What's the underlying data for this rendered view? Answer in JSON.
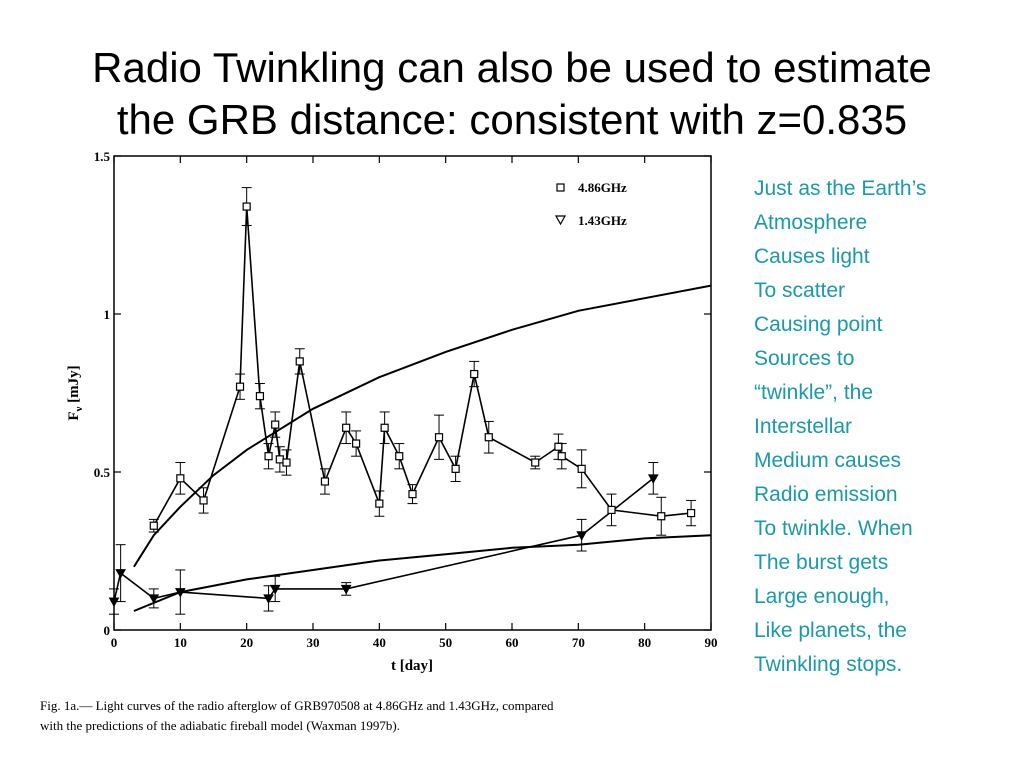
{
  "slide": {
    "title_lines": [
      "Radio Twinkling can also be used to estimate",
      "the GRB distance:  consistent with z=0.835"
    ],
    "side_text_lines": [
      "Just as the Earth’s",
      "Atmosphere",
      "Causes light",
      "To scatter",
      "Causing point",
      "Sources to",
      "“twinkle”, the",
      "Interstellar",
      "Medium causes",
      "Radio emission",
      "To twinkle.  When",
      "The burst gets",
      "Large enough,",
      "Like planets, the",
      "Twinkling stops."
    ],
    "side_text_color": "#1a9aa8",
    "caption_lines": [
      "Fig.  1a.— Light curves of the radio afterglow of GRB970508 at 4.86GHz and 1.43GHz, compared",
      "with the predictions of the adiabatic fireball model (Waxman 1997b)."
    ]
  },
  "chart_data": {
    "type": "line",
    "xlabel": "t [day]",
    "ylabel": "F",
    "ylabel_sub": "ν",
    "ylabel_tail": " [mJy]",
    "xlim": [
      0,
      90
    ],
    "ylim": [
      0,
      1.5
    ],
    "x_ticks": [
      0,
      10,
      20,
      30,
      40,
      50,
      60,
      70,
      80,
      90
    ],
    "y_ticks": [
      0,
      0.5,
      1,
      1.5
    ],
    "x_tick_labels": [
      "0",
      "10",
      "20",
      "30",
      "40",
      "50",
      "60",
      "70",
      "80",
      "90"
    ],
    "y_tick_labels": [
      "0",
      "0.5",
      "1",
      "1.5"
    ],
    "grid": false,
    "legend_position": "top-right",
    "series": [
      {
        "name": "4.86GHz",
        "marker": "square",
        "points": [
          {
            "x": 6,
            "y": 0.33,
            "err": 0.02
          },
          {
            "x": 10,
            "y": 0.48,
            "err": 0.05
          },
          {
            "x": 13.5,
            "y": 0.41,
            "err": 0.04
          },
          {
            "x": 19,
            "y": 0.77,
            "err": 0.04
          },
          {
            "x": 20,
            "y": 1.34,
            "err": 0.06
          },
          {
            "x": 22,
            "y": 0.74,
            "err": 0.04
          },
          {
            "x": 23.3,
            "y": 0.55,
            "err": 0.04
          },
          {
            "x": 24.3,
            "y": 0.65,
            "err": 0.04
          },
          {
            "x": 25,
            "y": 0.54,
            "err": 0.04
          },
          {
            "x": 26,
            "y": 0.53,
            "err": 0.04
          },
          {
            "x": 28,
            "y": 0.85,
            "err": 0.04
          },
          {
            "x": 31.8,
            "y": 0.47,
            "err": 0.04
          },
          {
            "x": 35,
            "y": 0.64,
            "err": 0.05
          },
          {
            "x": 36.5,
            "y": 0.59,
            "err": 0.04
          },
          {
            "x": 40,
            "y": 0.4,
            "err": 0.04
          },
          {
            "x": 40.8,
            "y": 0.64,
            "err": 0.05
          },
          {
            "x": 43,
            "y": 0.55,
            "err": 0.04
          },
          {
            "x": 45,
            "y": 0.43,
            "err": 0.03
          },
          {
            "x": 49,
            "y": 0.61,
            "err": 0.07
          },
          {
            "x": 51.5,
            "y": 0.51,
            "err": 0.04
          },
          {
            "x": 54.3,
            "y": 0.81,
            "err": 0.04
          },
          {
            "x": 56.5,
            "y": 0.61,
            "err": 0.05
          },
          {
            "x": 63.5,
            "y": 0.53,
            "err": 0.02
          },
          {
            "x": 67,
            "y": 0.58,
            "err": 0.04
          },
          {
            "x": 67.5,
            "y": 0.55,
            "err": 0.04
          },
          {
            "x": 70.5,
            "y": 0.51,
            "err": 0.06
          },
          {
            "x": 75,
            "y": 0.38,
            "err": 0.05
          },
          {
            "x": 82.5,
            "y": 0.36,
            "err": 0.06
          },
          {
            "x": 87,
            "y": 0.37,
            "err": 0.04
          }
        ]
      },
      {
        "name": "1.43GHz",
        "marker": "triangle-down",
        "points": [
          {
            "x": 0,
            "y": 0.09,
            "err": 0.04
          },
          {
            "x": 1,
            "y": 0.18,
            "err": 0.09
          },
          {
            "x": 6,
            "y": 0.1,
            "err": 0.03
          },
          {
            "x": 10,
            "y": 0.12,
            "err": 0.07
          },
          {
            "x": 23.3,
            "y": 0.1,
            "err": 0.04
          },
          {
            "x": 24.3,
            "y": 0.13,
            "err": 0.04
          },
          {
            "x": 35,
            "y": 0.13,
            "err": 0.02
          },
          {
            "x": 70.5,
            "y": 0.3,
            "err": 0.05
          },
          {
            "x": 81.3,
            "y": 0.48,
            "err": 0.05
          }
        ]
      },
      {
        "name": "",
        "role": "model-4.86GHz",
        "marker": "none",
        "x": [
          3,
          6,
          10,
          15,
          20,
          30,
          40,
          50,
          60,
          70,
          80,
          90
        ],
        "y": [
          0.2,
          0.3,
          0.39,
          0.49,
          0.57,
          0.7,
          0.8,
          0.88,
          0.95,
          1.01,
          1.05,
          1.09
        ]
      },
      {
        "name": "",
        "role": "model-1.43GHz",
        "marker": "none",
        "x": [
          3,
          10,
          20,
          30,
          40,
          50,
          60,
          70,
          80,
          90
        ],
        "y": [
          0.06,
          0.12,
          0.16,
          0.19,
          0.22,
          0.24,
          0.26,
          0.27,
          0.29,
          0.3
        ]
      }
    ]
  }
}
